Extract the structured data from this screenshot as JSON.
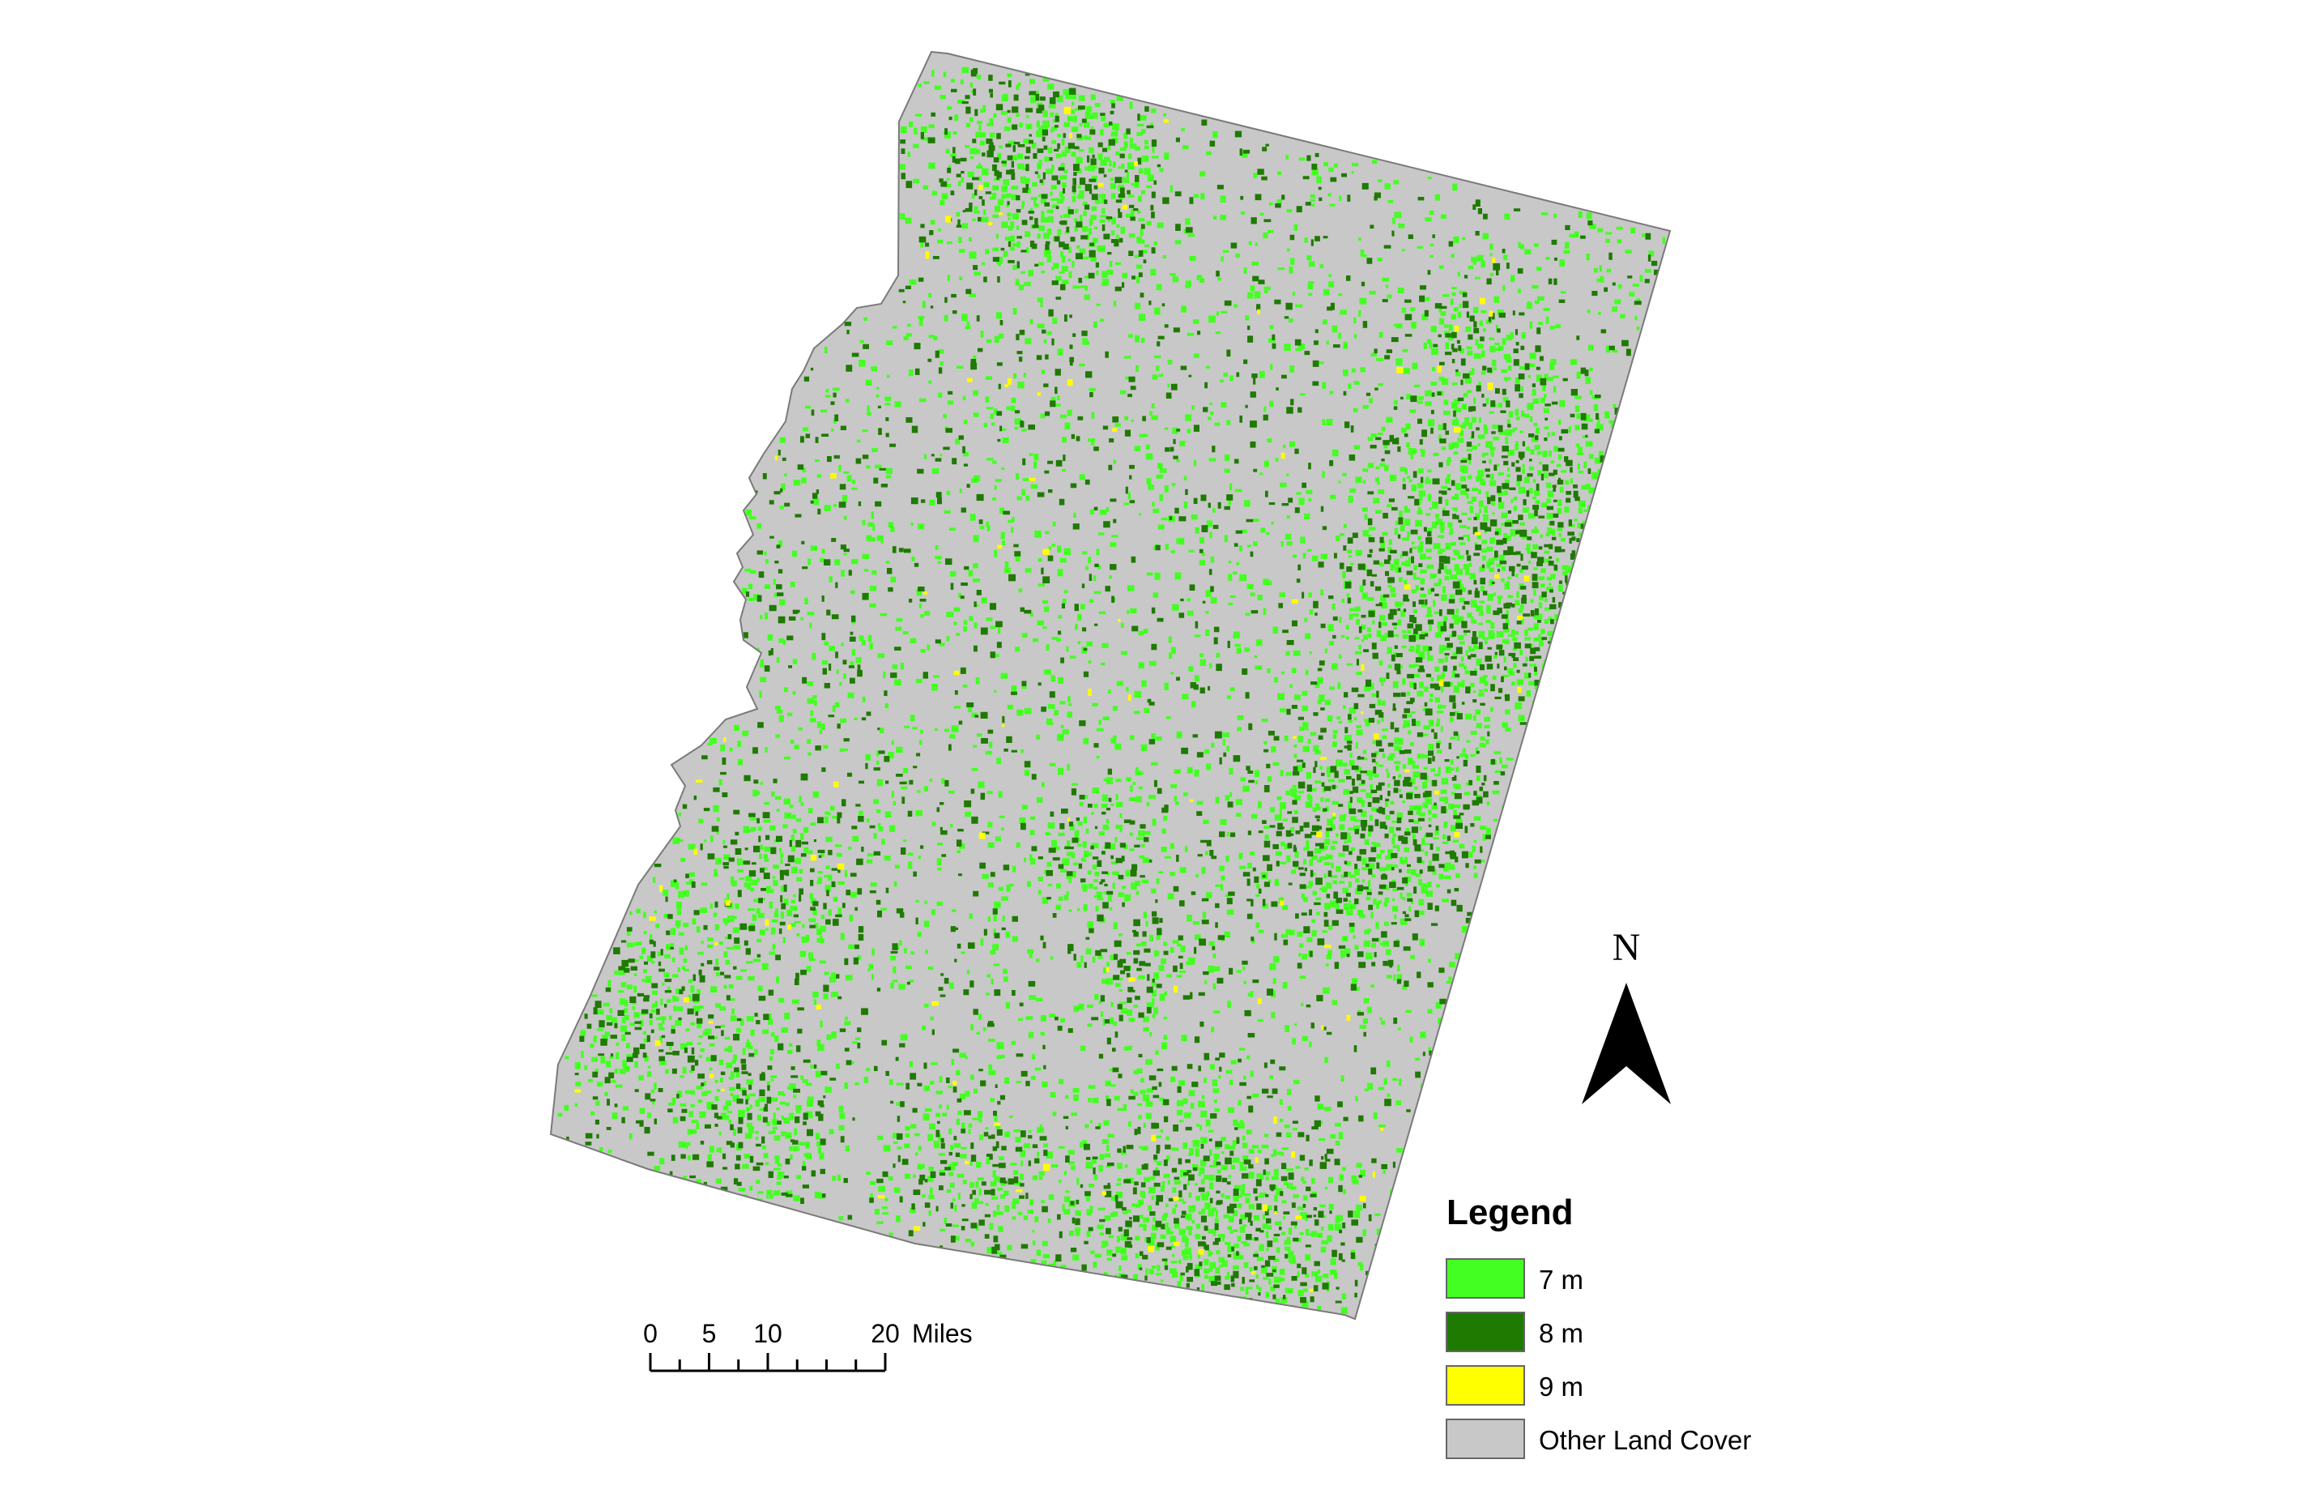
{
  "map": {
    "legend": {
      "title": "Legend",
      "items": [
        {
          "label": "7 m",
          "color": "#44ff22"
        },
        {
          "label": "8 m",
          "color": "#1e7a00"
        },
        {
          "label": "9 m",
          "color": "#ffff00"
        },
        {
          "label": "Other Land Cover",
          "color": "#c8c8c8"
        }
      ]
    },
    "north_arrow": {
      "label": "N"
    },
    "scale_bar": {
      "ticks": [
        "0",
        "5",
        "10",
        "20"
      ],
      "unit": "Miles"
    },
    "colors": {
      "background": "#ffffff",
      "land": "#c8c8c8",
      "light_green": "#44ff22",
      "dark_green": "#1e7a00",
      "yellow": "#ffff00"
    }
  }
}
